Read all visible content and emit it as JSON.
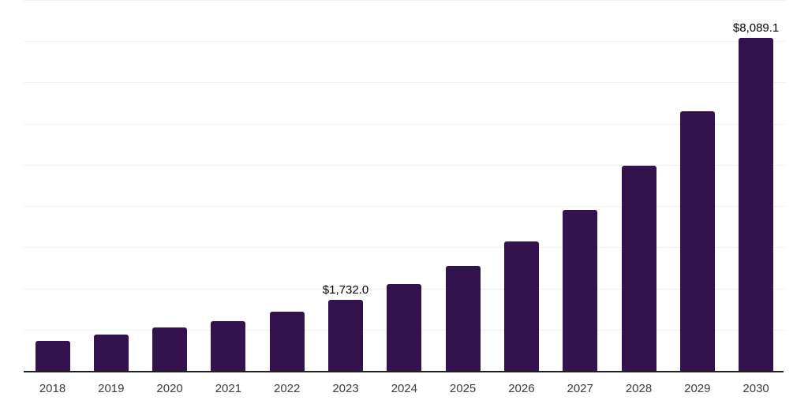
{
  "chart_data": {
    "type": "bar",
    "title": "",
    "xlabel": "",
    "ylabel": "",
    "categories": [
      "2018",
      "2019",
      "2020",
      "2021",
      "2022",
      "2023",
      "2024",
      "2025",
      "2026",
      "2027",
      "2028",
      "2029",
      "2030"
    ],
    "values": [
      730,
      890,
      1055,
      1205,
      1430,
      1732.0,
      2100,
      2545,
      3135,
      3910,
      4970,
      6300,
      8089.1
    ],
    "data_labels": {
      "2023": "$1,732.0",
      "2030": "$8,089.1"
    },
    "ylim": [
      0,
      9000
    ],
    "grid": "horizontal gridlines every 1000, unlabeled",
    "gridline_step": 1000,
    "legend": "none",
    "bar_color": "#34124e",
    "gridline_color": "#f0f0f0",
    "axis_color": "#1f1f1f",
    "value_label_color": "#000000",
    "tick_label_color": "#3d3d3d"
  }
}
